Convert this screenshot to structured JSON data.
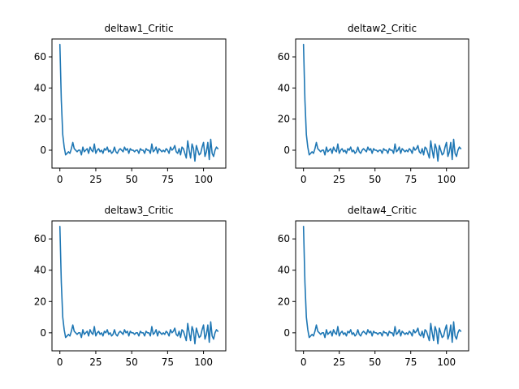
{
  "series_color": "#1f77b4",
  "chart_data": [
    {
      "type": "line",
      "title": "deltaw1_Critic",
      "xlim": [
        -5.5,
        115.5
      ],
      "ylim": [
        -11.5,
        71.5
      ],
      "xticks": [
        0,
        25,
        50,
        75,
        100
      ],
      "yticks": [
        0,
        20,
        40,
        60
      ],
      "grid": false,
      "y": [
        68,
        32,
        10,
        2,
        -3,
        -2,
        -1,
        -2,
        1,
        5,
        1,
        0,
        -1,
        0,
        0,
        -3,
        2,
        -1,
        0,
        1,
        -2,
        2,
        0,
        -1,
        4,
        -2,
        0,
        1,
        -1,
        0,
        -2,
        1,
        0,
        2,
        -1,
        0,
        -2,
        -1,
        2,
        -1,
        -2,
        0,
        1,
        0,
        -1,
        2,
        0,
        1,
        -2,
        1,
        0,
        0,
        -1,
        0,
        0,
        -2,
        1,
        0,
        0,
        -2,
        1,
        0,
        0,
        -2,
        4,
        -1,
        0,
        2,
        -2,
        1,
        0,
        -1,
        0,
        -1,
        1,
        0,
        -2,
        2,
        0,
        1,
        3,
        -1,
        -2,
        1,
        -3,
        2,
        1,
        -2,
        -5,
        6,
        0,
        -5,
        4,
        1,
        -7,
        3,
        0,
        -3,
        -2,
        2,
        5,
        -4,
        -1,
        5,
        -6,
        7,
        -2,
        -4,
        0,
        2,
        1
      ]
    },
    {
      "type": "line",
      "title": "deltaw2_Critic",
      "xlim": [
        -5.5,
        115.5
      ],
      "ylim": [
        -11.5,
        71.5
      ],
      "xticks": [
        0,
        25,
        50,
        75,
        100
      ],
      "yticks": [
        0,
        20,
        40,
        60
      ],
      "grid": false,
      "y": [
        68,
        32,
        10,
        2,
        -3,
        -2,
        -1,
        -2,
        1,
        5,
        1,
        0,
        -1,
        0,
        0,
        -3,
        2,
        -1,
        0,
        1,
        -2,
        2,
        0,
        -1,
        4,
        -2,
        0,
        1,
        -1,
        0,
        -2,
        1,
        0,
        2,
        -1,
        0,
        -2,
        -1,
        2,
        -1,
        -2,
        0,
        1,
        0,
        -1,
        2,
        0,
        1,
        -2,
        1,
        0,
        0,
        -1,
        0,
        0,
        -2,
        1,
        0,
        0,
        -2,
        1,
        0,
        0,
        -2,
        4,
        -1,
        0,
        2,
        -2,
        1,
        0,
        -1,
        0,
        -1,
        1,
        0,
        -2,
        2,
        0,
        1,
        3,
        -1,
        -2,
        1,
        -3,
        2,
        1,
        -2,
        -5,
        6,
        0,
        -5,
        4,
        1,
        -7,
        3,
        0,
        -3,
        -2,
        2,
        5,
        -4,
        -1,
        5,
        -6,
        7,
        -2,
        -4,
        0,
        2,
        1
      ]
    },
    {
      "type": "line",
      "title": "deltaw3_Critic",
      "xlim": [
        -5.5,
        115.5
      ],
      "ylim": [
        -11.5,
        71.5
      ],
      "xticks": [
        0,
        25,
        50,
        75,
        100
      ],
      "yticks": [
        0,
        20,
        40,
        60
      ],
      "grid": false,
      "y": [
        68,
        32,
        10,
        2,
        -3,
        -2,
        -1,
        -2,
        1,
        5,
        1,
        0,
        -1,
        0,
        0,
        -3,
        2,
        -1,
        0,
        1,
        -2,
        2,
        0,
        -1,
        4,
        -2,
        0,
        1,
        -1,
        0,
        -2,
        1,
        0,
        2,
        -1,
        0,
        -2,
        -1,
        2,
        -1,
        -2,
        0,
        1,
        0,
        -1,
        2,
        0,
        1,
        -2,
        1,
        0,
        0,
        -1,
        0,
        0,
        -2,
        1,
        0,
        0,
        -2,
        1,
        0,
        0,
        -2,
        4,
        -1,
        0,
        2,
        -2,
        1,
        0,
        -1,
        0,
        -1,
        1,
        0,
        -2,
        2,
        0,
        1,
        3,
        -1,
        -2,
        1,
        -3,
        2,
        1,
        -2,
        -5,
        6,
        0,
        -5,
        4,
        1,
        -7,
        3,
        0,
        -3,
        -2,
        2,
        5,
        -4,
        -1,
        5,
        -6,
        7,
        -2,
        -4,
        0,
        2,
        1
      ]
    },
    {
      "type": "line",
      "title": "deltaw4_Critic",
      "xlim": [
        -5.5,
        115.5
      ],
      "ylim": [
        -11.5,
        71.5
      ],
      "xticks": [
        0,
        25,
        50,
        75,
        100
      ],
      "yticks": [
        0,
        20,
        40,
        60
      ],
      "grid": false,
      "y": [
        68,
        32,
        10,
        2,
        -3,
        -2,
        -1,
        -2,
        1,
        5,
        1,
        0,
        -1,
        0,
        0,
        -3,
        2,
        -1,
        0,
        1,
        -2,
        2,
        0,
        -1,
        4,
        -2,
        0,
        1,
        -1,
        0,
        -2,
        1,
        0,
        2,
        -1,
        0,
        -2,
        -1,
        2,
        -1,
        -2,
        0,
        1,
        0,
        -1,
        2,
        0,
        1,
        -2,
        1,
        0,
        0,
        -1,
        0,
        0,
        -2,
        1,
        0,
        0,
        -2,
        1,
        0,
        0,
        -2,
        4,
        -1,
        0,
        2,
        -2,
        1,
        0,
        -1,
        0,
        -1,
        1,
        0,
        -2,
        2,
        0,
        1,
        3,
        -1,
        -2,
        1,
        -3,
        2,
        1,
        -2,
        -5,
        6,
        0,
        -5,
        4,
        1,
        -7,
        3,
        0,
        -3,
        -2,
        2,
        5,
        -4,
        -1,
        5,
        -6,
        7,
        -2,
        -4,
        0,
        2,
        1
      ]
    }
  ]
}
